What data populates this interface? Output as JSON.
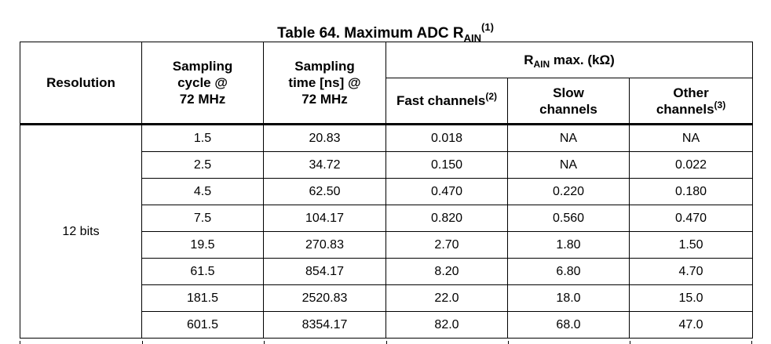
{
  "caption": {
    "text": "Table 64. Maximum ADC R",
    "subscript": "AIN",
    "superscript": "(1)"
  },
  "header": {
    "resolution": "Resolution",
    "sampling_cycle": [
      "Sampling",
      "cycle @",
      "72 MHz"
    ],
    "sampling_time": [
      "Sampling",
      "time [ns] @",
      "72 MHz"
    ],
    "rain_group": {
      "prefix": "R",
      "subscript": "AIN",
      "suffix": " max. (kΩ)"
    },
    "fast_channels": {
      "text": "Fast channels",
      "note": "(2)"
    },
    "slow_channels": [
      "Slow",
      "channels"
    ],
    "other_channels": {
      "line1": "Other",
      "line2": "channels",
      "note": "(3)"
    }
  },
  "resolution_value": "12 bits",
  "rows": [
    {
      "cycle": "1.5",
      "time": "20.83",
      "fast": "0.018",
      "slow": "NA",
      "other": "NA"
    },
    {
      "cycle": "2.5",
      "time": "34.72",
      "fast": "0.150",
      "slow": "NA",
      "other": "0.022"
    },
    {
      "cycle": "4.5",
      "time": "62.50",
      "fast": "0.470",
      "slow": "0.220",
      "other": "0.180"
    },
    {
      "cycle": "7.5",
      "time": "104.17",
      "fast": "0.820",
      "slow": "0.560",
      "other": "0.470"
    },
    {
      "cycle": "19.5",
      "time": "270.83",
      "fast": "2.70",
      "slow": "1.80",
      "other": "1.50"
    },
    {
      "cycle": "61.5",
      "time": "854.17",
      "fast": "8.20",
      "slow": "6.80",
      "other": "4.70"
    },
    {
      "cycle": "181.5",
      "time": "2520.83",
      "fast": "22.0",
      "slow": "18.0",
      "other": "15.0"
    },
    {
      "cycle": "601.5",
      "time": "8354.17",
      "fast": "82.0",
      "slow": "68.0",
      "other": "47.0"
    }
  ]
}
